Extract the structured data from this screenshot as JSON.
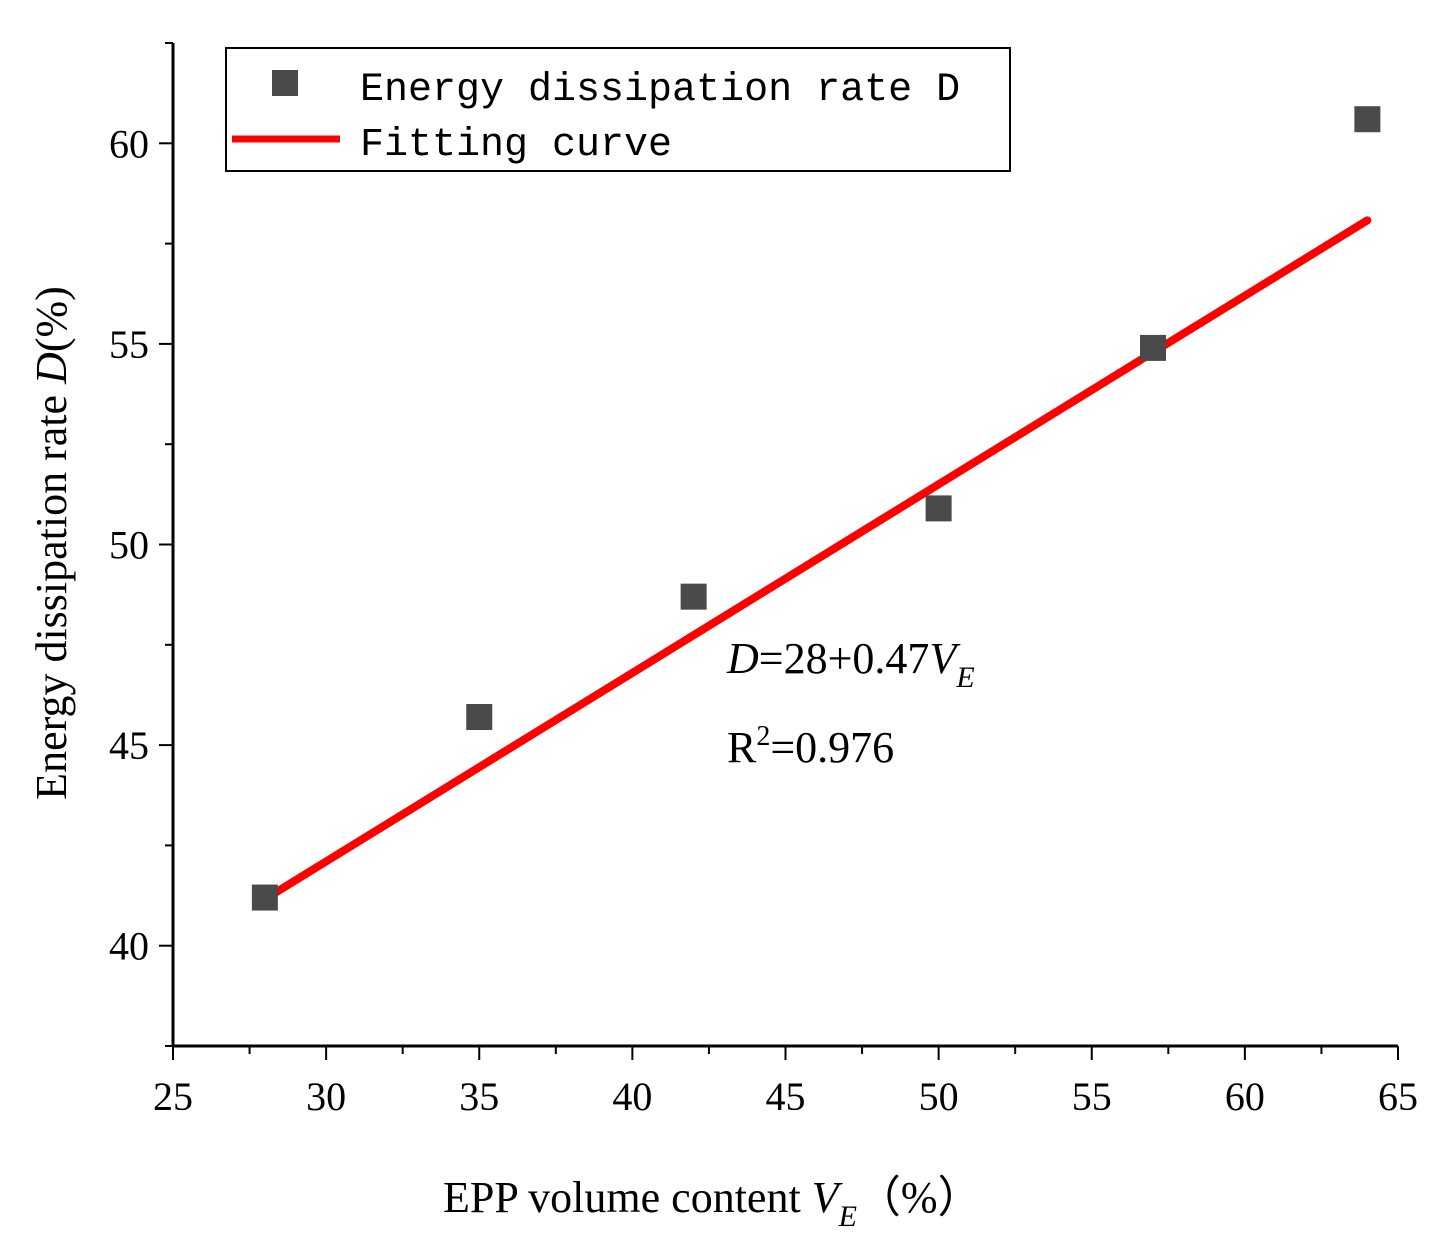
{
  "chart_data": {
    "type": "scatter",
    "xlabel": {
      "main": "EPP volume content ",
      "var": "V",
      "sub": "E",
      "unit": "（%）"
    },
    "ylabel": {
      "main": "Energy dissipation rate ",
      "var": "D",
      "unit": "(%)"
    },
    "xlim": [
      25,
      65
    ],
    "ylim": [
      37.5,
      62.5
    ],
    "x_ticks": [
      25,
      30,
      35,
      40,
      45,
      50,
      55,
      60,
      65
    ],
    "y_ticks": [
      40,
      45,
      50,
      55,
      60
    ],
    "series": [
      {
        "name": "Energy dissipation rate D",
        "kind": "scatter",
        "color": "#4a4a4a",
        "marker": "square",
        "x": [
          28,
          35,
          42,
          50,
          57,
          64
        ],
        "y": [
          41.2,
          45.7,
          48.7,
          50.9,
          54.9,
          60.6
        ]
      },
      {
        "name": "Fitting curve",
        "kind": "line",
        "color": "#ff0000",
        "intercept": 28,
        "slope": 0.47,
        "x_range": [
          28,
          64
        ]
      }
    ],
    "legend": {
      "position": "top-left",
      "entries": [
        "Energy dissipation rate D",
        "Fitting curve"
      ]
    },
    "annotation": {
      "equation_var": "D",
      "equation_body": "=28+0.47",
      "equation_rhs_var": "V",
      "equation_rhs_sub": "E",
      "r2_label": "R",
      "r2_sup": "2",
      "r2_value": "=0.976"
    }
  }
}
